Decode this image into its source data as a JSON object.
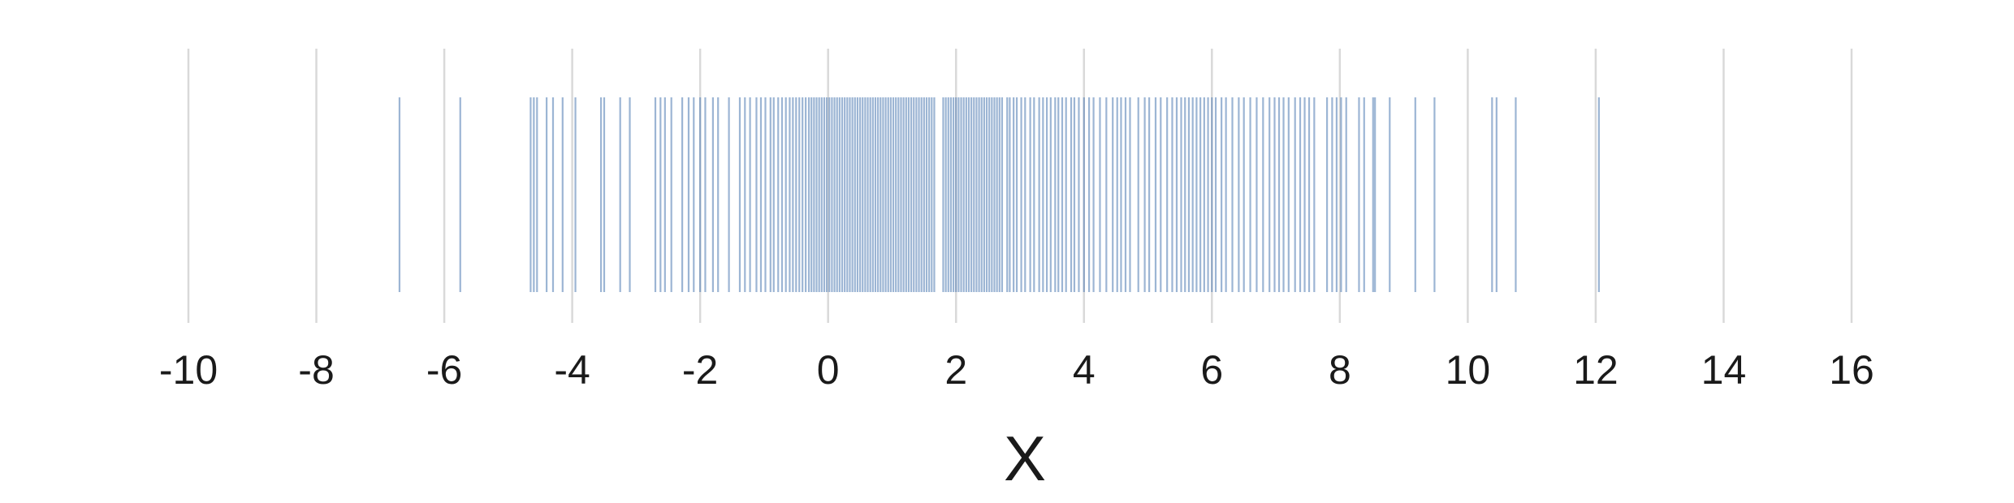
{
  "chart_data": {
    "type": "rug",
    "title": "",
    "xlabel": "X",
    "ylabel": "",
    "xlim": [
      -10,
      16
    ],
    "x_ticks": [
      -10,
      -8,
      -6,
      -4,
      -2,
      0,
      2,
      4,
      6,
      8,
      10,
      12,
      14,
      16
    ],
    "x_tick_labels": [
      "-10",
      "-8",
      "-6",
      "-4",
      "-2",
      "0",
      "2",
      "4",
      "6",
      "8",
      "10",
      "12",
      "14",
      "16"
    ],
    "grid": true,
    "legend": "none",
    "color": "#4a78b0",
    "values": [
      -6.7,
      -5.75,
      -4.65,
      -4.6,
      -4.55,
      -4.4,
      -4.3,
      -4.15,
      -3.95,
      -3.55,
      -3.5,
      -3.25,
      -3.1,
      -2.7,
      -2.62,
      -2.55,
      -2.45,
      -2.28,
      -2.18,
      -2.1,
      -2.0,
      -1.92,
      -1.8,
      -1.72,
      -1.55,
      -1.38,
      -1.3,
      -1.22,
      -1.12,
      -1.05,
      -0.98,
      -0.9,
      -0.85,
      -0.78,
      -0.72,
      -0.66,
      -0.6,
      -0.55,
      -0.5,
      -0.45,
      -0.4,
      -0.35,
      -0.3,
      -0.26,
      -0.22,
      -0.18,
      -0.14,
      -0.1,
      -0.06,
      -0.02,
      0.02,
      0.06,
      0.1,
      0.14,
      0.18,
      0.22,
      0.26,
      0.3,
      0.34,
      0.38,
      0.42,
      0.46,
      0.5,
      0.54,
      0.58,
      0.62,
      0.66,
      0.7,
      0.74,
      0.78,
      0.82,
      0.86,
      0.9,
      0.94,
      0.98,
      1.02,
      1.06,
      1.1,
      1.14,
      1.18,
      1.22,
      1.26,
      1.3,
      1.34,
      1.38,
      1.42,
      1.46,
      1.5,
      1.54,
      1.58,
      1.62,
      1.66,
      1.8,
      1.84,
      1.88,
      1.92,
      1.96,
      2.0,
      2.04,
      2.08,
      2.12,
      2.16,
      2.2,
      2.24,
      2.28,
      2.32,
      2.36,
      2.4,
      2.44,
      2.48,
      2.52,
      2.56,
      2.6,
      2.64,
      2.68,
      2.72,
      2.8,
      2.84,
      2.9,
      2.95,
      3.02,
      3.08,
      3.16,
      3.22,
      3.3,
      3.36,
      3.42,
      3.48,
      3.55,
      3.6,
      3.66,
      3.72,
      3.8,
      3.85,
      3.92,
      4.0,
      4.08,
      4.15,
      4.25,
      4.35,
      4.45,
      4.52,
      4.58,
      4.65,
      4.72,
      4.85,
      4.95,
      5.02,
      5.12,
      5.2,
      5.3,
      5.38,
      5.45,
      5.52,
      5.58,
      5.64,
      5.7,
      5.76,
      5.82,
      5.88,
      5.94,
      6.0,
      6.06,
      6.15,
      6.22,
      6.32,
      6.42,
      6.5,
      6.6,
      6.7,
      6.8,
      6.9,
      6.98,
      7.05,
      7.12,
      7.2,
      7.3,
      7.38,
      7.45,
      7.52,
      7.6,
      7.8,
      7.88,
      7.95,
      8.02,
      8.1,
      8.3,
      8.38,
      8.52,
      8.55,
      8.78,
      9.18,
      9.48,
      10.38,
      10.45,
      10.75,
      12.05
    ]
  }
}
